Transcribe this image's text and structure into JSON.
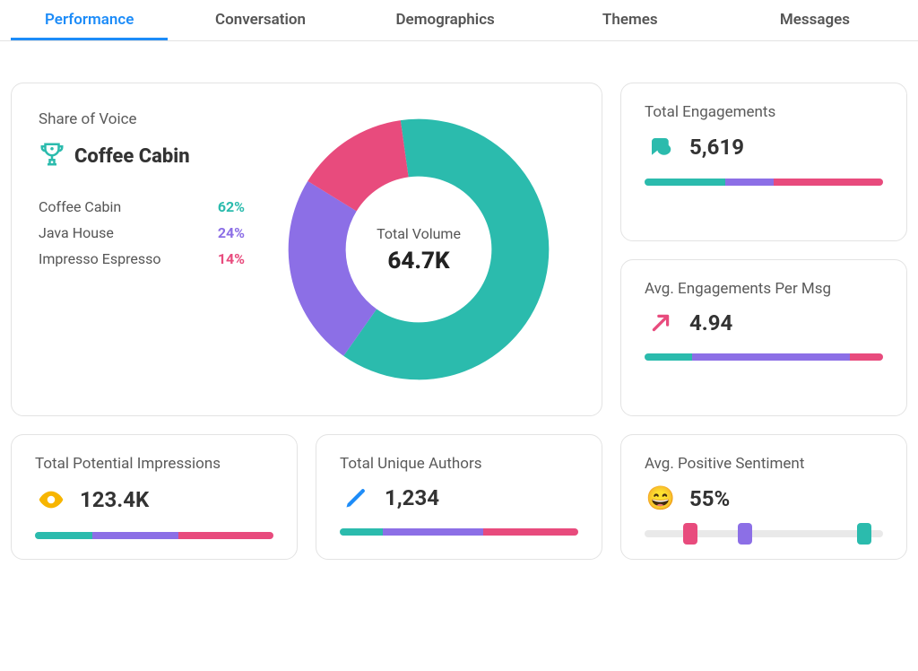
{
  "colors": {
    "teal": "#2bbbad",
    "purple": "#8c6fe6",
    "pink": "#e84b7d",
    "amber": "#f7b500",
    "text": "#333333",
    "muted": "#5a5a5a",
    "border": "#e3e3e3",
    "track": "#e9e9e9",
    "tab_active": "#1d8cf8"
  },
  "tabs": [
    {
      "label": "Performance",
      "active": true
    },
    {
      "label": "Conversation",
      "active": false
    },
    {
      "label": "Demographics",
      "active": false
    },
    {
      "label": "Themes",
      "active": false
    },
    {
      "label": "Messages",
      "active": false
    }
  ],
  "share_of_voice": {
    "title": "Share of Voice",
    "winner": "Coffee Cabin",
    "donut": {
      "type": "donut",
      "center_label": "Total Volume",
      "center_value": "64.7K",
      "outer_radius": 150,
      "inner_radius": 84,
      "background": "#ffffff",
      "start_angle_deg": -8,
      "slices": [
        {
          "label": "Coffee Cabin",
          "pct": 62,
          "color": "#2bbbad"
        },
        {
          "label": "Java House",
          "pct": 24,
          "color": "#8c6fe6"
        },
        {
          "label": "Impresso Espresso",
          "pct": 14,
          "color": "#e84b7d"
        }
      ]
    },
    "legend": [
      {
        "label": "Coffee Cabin",
        "pct": "62%",
        "color": "#2bbbad"
      },
      {
        "label": "Java House",
        "pct": "24%",
        "color": "#8c6fe6"
      },
      {
        "label": "Impresso Espresso",
        "pct": "14%",
        "color": "#e84b7d"
      }
    ]
  },
  "cards": {
    "engagements": {
      "title": "Total Engagements",
      "value": "5,619",
      "icon": "chat",
      "icon_color": "#2bbbad",
      "bar": [
        {
          "pct": 34,
          "color": "#2bbbad"
        },
        {
          "pct": 20,
          "color": "#8c6fe6"
        },
        {
          "pct": 46,
          "color": "#e84b7d"
        }
      ]
    },
    "avg_eng": {
      "title": "Avg. Engagements Per Msg",
      "value": "4.94",
      "icon": "arrow",
      "icon_color": "#e84b7d",
      "bar": [
        {
          "pct": 20,
          "color": "#2bbbad"
        },
        {
          "pct": 66,
          "color": "#8c6fe6"
        },
        {
          "pct": 14,
          "color": "#e84b7d"
        }
      ]
    },
    "impressions": {
      "title": "Total Potential Impressions",
      "value": "123.4K",
      "icon": "eye",
      "icon_color": "#f7b500",
      "bar": [
        {
          "pct": 24,
          "color": "#2bbbad"
        },
        {
          "pct": 36,
          "color": "#8c6fe6"
        },
        {
          "pct": 40,
          "color": "#e84b7d"
        }
      ]
    },
    "authors": {
      "title": "Total Unique Authors",
      "value": "1,234",
      "icon": "pencil",
      "icon_color": "#1d8cf8",
      "bar": [
        {
          "pct": 18,
          "color": "#2bbbad"
        },
        {
          "pct": 42,
          "color": "#8c6fe6"
        },
        {
          "pct": 40,
          "color": "#e84b7d"
        }
      ]
    },
    "sentiment": {
      "title": "Avg. Positive Sentiment",
      "value": "55%",
      "icon": "emoji",
      "handles": [
        {
          "pos_pct": 19,
          "color": "#e84b7d"
        },
        {
          "pos_pct": 42,
          "color": "#8c6fe6"
        },
        {
          "pos_pct": 92,
          "color": "#2bbbad"
        }
      ]
    }
  }
}
